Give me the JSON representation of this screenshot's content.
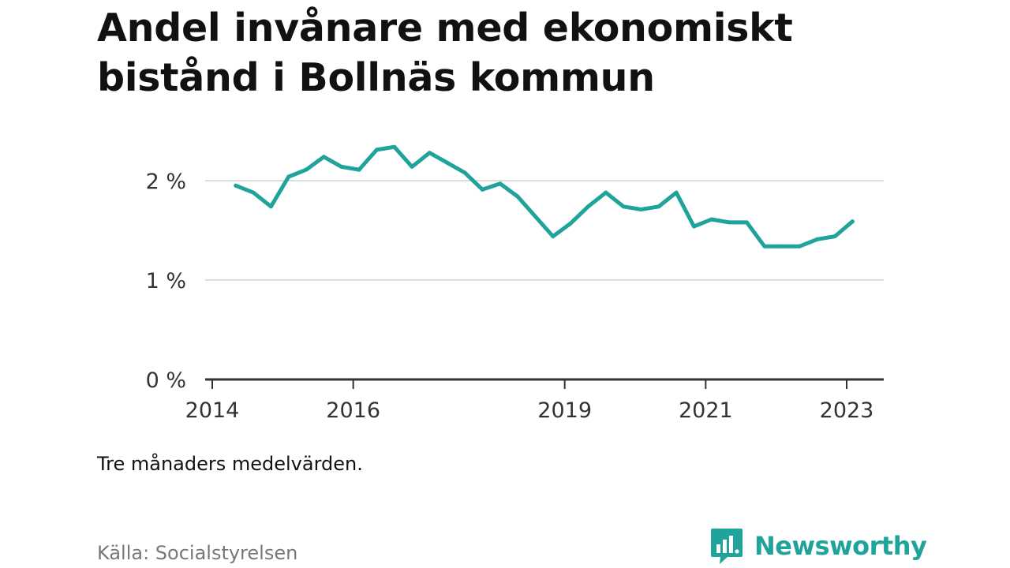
{
  "chart_data": {
    "type": "line",
    "title": "Andel invånare med ekonomiskt bistånd i Bollnäs kommun",
    "note": "Tre månaders medelvärden.",
    "source": "Källa: Socialstyrelsen",
    "y_unit": "%",
    "ylim": [
      0,
      2.5
    ],
    "y_ticks": [
      0,
      1,
      2
    ],
    "y_tick_labels": [
      "0 %",
      "1 %",
      "2 %"
    ],
    "x_ticks": [
      "2014",
      "2016",
      "2019",
      "2021",
      "2023"
    ],
    "grid": true,
    "line_color": "#1fa39a",
    "series": [
      {
        "x": [
          "2014-05",
          "2014-08",
          "2014-11",
          "2015-02",
          "2015-05",
          "2015-08",
          "2015-11",
          "2016-02",
          "2016-05",
          "2016-08",
          "2016-11",
          "2017-02",
          "2017-05",
          "2017-08",
          "2017-11",
          "2018-02",
          "2018-05",
          "2018-08",
          "2018-11",
          "2019-02",
          "2019-05",
          "2019-08",
          "2019-11",
          "2020-02",
          "2020-05",
          "2020-08",
          "2020-11",
          "2021-02",
          "2021-05",
          "2021-08",
          "2021-11",
          "2022-02",
          "2022-05",
          "2022-08",
          "2022-11",
          "2023-02"
        ],
        "values": [
          1.95,
          1.88,
          1.74,
          2.04,
          2.11,
          2.24,
          2.14,
          2.11,
          2.31,
          2.34,
          2.14,
          2.28,
          2.18,
          2.08,
          1.91,
          1.97,
          1.84,
          1.64,
          1.44,
          1.57,
          1.74,
          1.88,
          1.74,
          1.71,
          1.74,
          1.88,
          1.54,
          1.61,
          1.58,
          1.58,
          1.34,
          1.34,
          1.34,
          1.41,
          1.44,
          1.59
        ]
      }
    ]
  },
  "brand": {
    "name": "Newsworthy",
    "icon": "newsworthy-logo-icon",
    "color": "#1fa39a"
  }
}
